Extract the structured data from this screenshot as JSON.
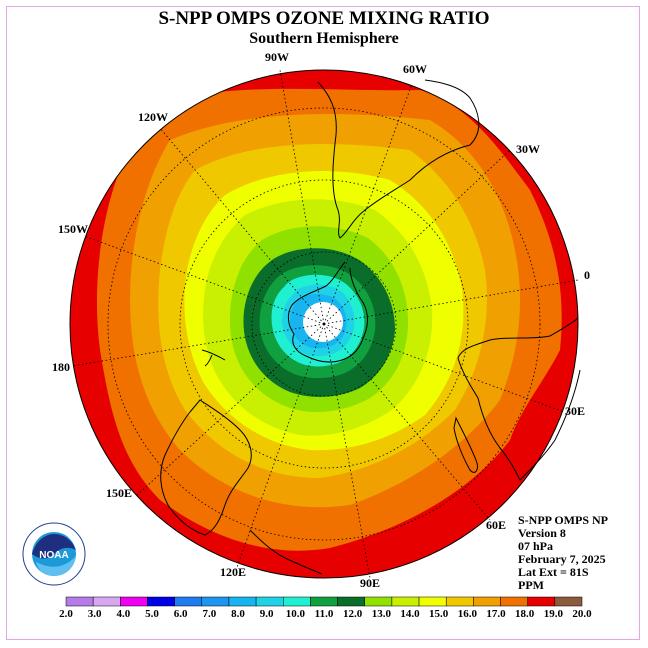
{
  "header": {
    "title": "S-NPP OMPS OZONE MIXING RATIO",
    "subtitle": "Southern Hemisphere"
  },
  "longitude_labels": [
    "90W",
    "60W",
    "30W",
    "0",
    "30E",
    "60E",
    "90E",
    "120E",
    "150E",
    "180",
    "150W",
    "120W"
  ],
  "info": {
    "instrument": "S-NPP OMPS NP",
    "version": "Version 8",
    "level": "07 hPa",
    "date": "February 7, 2025",
    "lat_ext": "Lat Ext = 81S",
    "units": "PPM"
  },
  "logo": {
    "text": "NOAA",
    "ring_text": "NATIONAL OCEANIC AND ATMOSPHERIC ADMINISTRATION · U.S. DEPARTMENT OF COMMERCE"
  },
  "colorbar": {
    "labels": [
      "2.0",
      "3.0",
      "4.0",
      "5.0",
      "6.0",
      "7.0",
      "8.0",
      "9.0",
      "10.0",
      "11.0",
      "12.0",
      "13.0",
      "14.0",
      "15.0",
      "16.0",
      "17.0",
      "18.0",
      "19.0",
      "20.0"
    ],
    "colors": [
      "#b57be8",
      "#d8a7f2",
      "#f000f0",
      "#0000e6",
      "#1e7cf0",
      "#1e96f0",
      "#18b4f0",
      "#20d2e6",
      "#20f0d2",
      "#10a040",
      "#0a6e2a",
      "#90e000",
      "#c8f000",
      "#f0ff00",
      "#f0c800",
      "#f0a000",
      "#f07000",
      "#e60000",
      "#8c5a3c"
    ]
  }
}
